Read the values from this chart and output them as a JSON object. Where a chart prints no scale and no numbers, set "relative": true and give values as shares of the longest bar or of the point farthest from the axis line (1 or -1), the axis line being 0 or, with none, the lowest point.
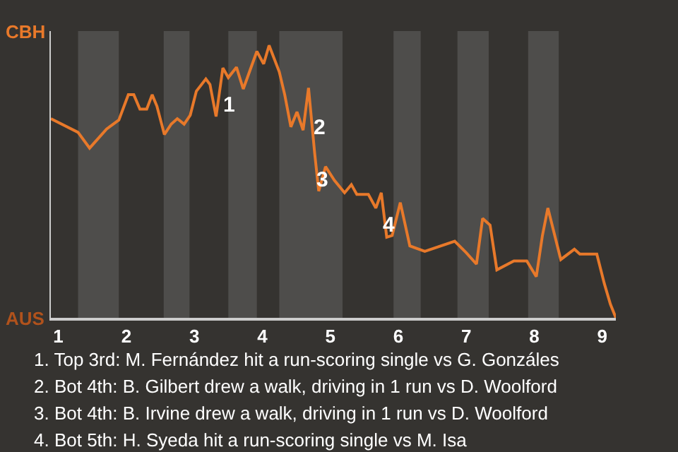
{
  "chart_data": {
    "type": "line",
    "relative": true,
    "x": [
      0.89,
      1.29,
      1.46,
      1.71,
      1.89,
      2.03,
      2.11,
      2.2,
      2.3,
      2.38,
      2.45,
      2.56,
      2.66,
      2.75,
      2.85,
      2.94,
      3.03,
      3.17,
      3.23,
      3.32,
      3.42,
      3.5,
      3.62,
      3.72,
      3.92,
      4.02,
      4.1,
      4.25,
      4.33,
      4.42,
      4.51,
      4.6,
      4.68,
      4.77,
      4.83,
      4.93,
      5.06,
      5.21,
      5.31,
      5.39,
      5.56,
      5.67,
      5.75,
      5.83,
      5.91,
      6.03,
      6.17,
      6.39,
      6.83,
      7.0,
      7.15,
      7.24,
      7.35,
      7.45,
      7.7,
      7.89,
      8.03,
      8.12,
      8.2,
      8.39,
      8.59,
      8.67,
      8.92,
      9.03,
      9.12,
      9.2
    ],
    "series": [
      {
        "color": "#e8792a",
        "values": [
          0.731,
          0.681,
          0.623,
          0.693,
          0.726,
          0.819,
          0.819,
          0.766,
          0.766,
          0.819,
          0.777,
          0.673,
          0.711,
          0.731,
          0.711,
          0.744,
          0.832,
          0.877,
          0.857,
          0.739,
          0.917,
          0.882,
          0.92,
          0.84,
          0.978,
          0.932,
          1,
          0.903,
          0.819,
          0.701,
          0.756,
          0.689,
          0.844,
          0.605,
          0.465,
          0.555,
          0.505,
          0.459,
          0.489,
          0.453,
          0.453,
          0.403,
          0.459,
          0.296,
          0.302,
          0.423,
          0.264,
          0.244,
          0.281,
          0.239,
          0.197,
          0.365,
          0.34,
          0.176,
          0.209,
          0.209,
          0.151,
          0.302,
          0.403,
          0.214,
          0.252,
          0.234,
          0.234,
          0.126,
          0.05,
          0
        ]
      }
    ],
    "xlim": [
      0.89,
      9.2
    ],
    "xticks": [
      1,
      2,
      3,
      4,
      5,
      6,
      7,
      8,
      9
    ],
    "marker": "none",
    "line_style": "solid",
    "bands": [
      {
        "axis": "x",
        "from": 1.29,
        "to": 1.89,
        "color": "#4e4d4b"
      },
      {
        "axis": "x",
        "from": 2.55,
        "to": 2.93,
        "color": "#4e4d4b"
      },
      {
        "axis": "x",
        "from": 3.5,
        "to": 3.92,
        "color": "#4e4d4b"
      },
      {
        "axis": "x",
        "from": 4.25,
        "to": 5.18,
        "color": "#4e4d4b"
      },
      {
        "axis": "x",
        "from": 5.93,
        "to": 6.33,
        "color": "#4e4d4b"
      },
      {
        "axis": "x",
        "from": 6.87,
        "to": 7.33,
        "color": "#4e4d4b"
      },
      {
        "axis": "x",
        "from": 7.91,
        "to": 8.36,
        "color": "#4e4d4b"
      }
    ],
    "annotations": [
      "CBH",
      "AUS",
      {
        "text": "1",
        "x": 3.5,
        "y": 0.778
      },
      {
        "text": "2",
        "x": 4.83,
        "y": 0.695
      },
      {
        "text": "3",
        "x": 4.88,
        "y": 0.506
      },
      {
        "text": "4",
        "x": 5.87,
        "y": 0.34
      },
      "1. Top 3rd: M. Fernández hit a run-scoring single vs G. Gonzáles",
      "2. Bot 4th: B. Gilbert drew a walk, driving in 1 run vs D. Woolford",
      "3. Bot 4th: B. Irvine drew a walk, driving in 1 run vs D. Woolford",
      "4. Bot 5th: H. Syeda hit a run-scoring single vs M. Isa"
    ]
  }
}
